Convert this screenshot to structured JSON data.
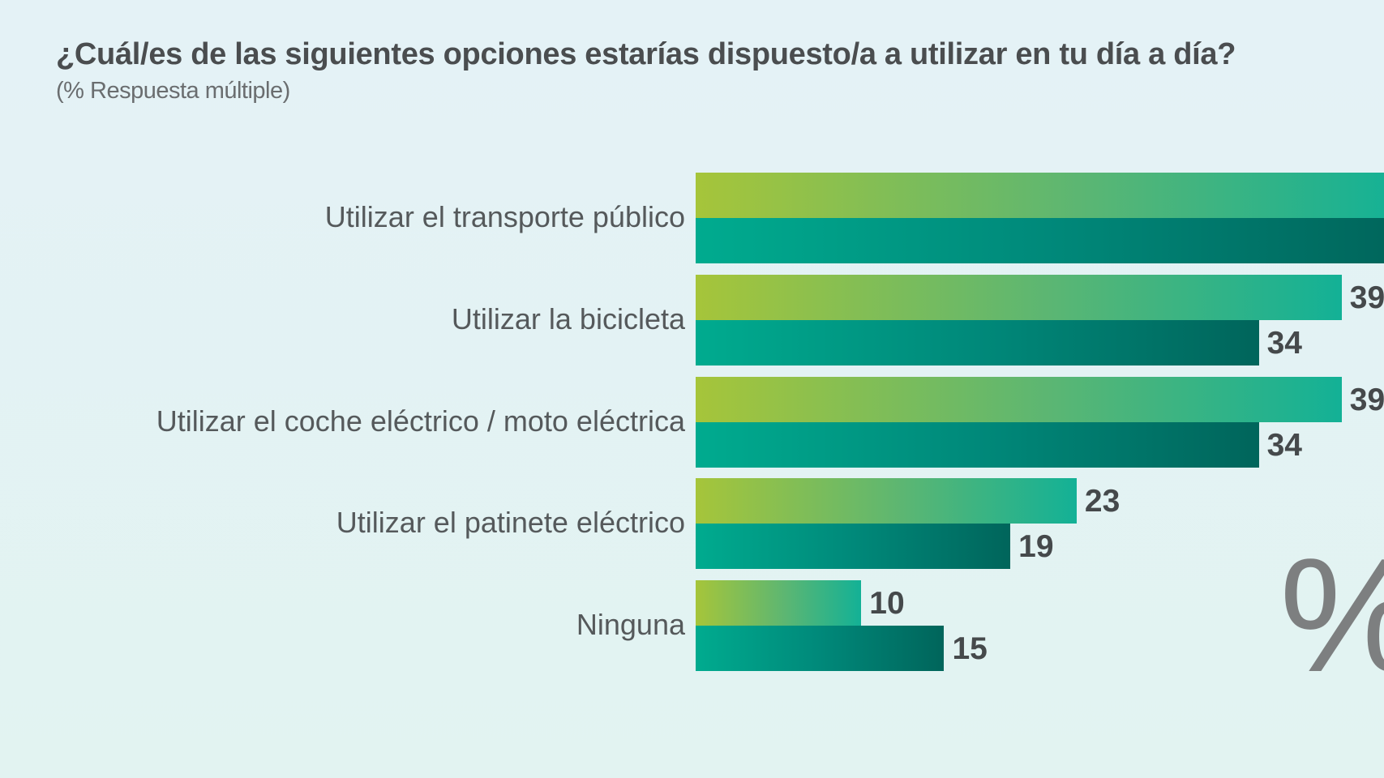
{
  "chart_data": {
    "type": "bar",
    "orientation": "horizontal",
    "title": "¿Cuál/es de las siguientes opciones estarías dispuesto/a a utilizar en tu día a día?",
    "subtitle": "(% Respuesta múltiple)",
    "categories": [
      "Utilizar el transporte público",
      "Utilizar la bicicleta",
      "Utilizar el coche eléctrico / moto eléctrica",
      "Utilizar el patinete eléctrico",
      "Ninguna"
    ],
    "series": [
      {
        "values": [
          null,
          39,
          39,
          23,
          10
        ],
        "color_start": "#a6c53a",
        "color_end": "#13b196"
      },
      {
        "values": [
          null,
          34,
          34,
          19,
          15
        ],
        "color_start": "#00ab8f",
        "color_end": "#00655b"
      }
    ],
    "unit_symbol": "%",
    "grid": false,
    "xlim": [
      0,
      41
    ]
  }
}
